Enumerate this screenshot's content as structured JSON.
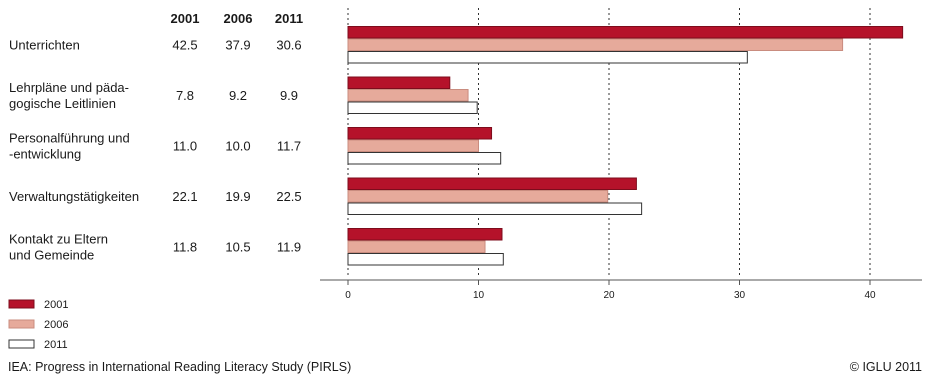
{
  "chart_data": {
    "type": "bar",
    "orientation": "horizontal",
    "column_headers": [
      "2001",
      "2006",
      "2011"
    ],
    "categories": [
      [
        "Unterrichten"
      ],
      [
        "Lehrpläne und päda-",
        "gogische Leitlinien"
      ],
      [
        "Personalführung und",
        "-entwicklung"
      ],
      [
        "Verwaltungstätigkeiten"
      ],
      [
        "Kontakt zu Eltern",
        "und Gemeinde"
      ]
    ],
    "series": [
      {
        "name": "2001",
        "color": "#b5122a",
        "values": [
          42.5,
          7.8,
          11.0,
          22.1,
          11.8
        ]
      },
      {
        "name": "2006",
        "color": "#e6aa9b",
        "values": [
          37.9,
          9.2,
          10.0,
          19.9,
          10.5
        ]
      },
      {
        "name": "2011",
        "color": "#ffffff",
        "values": [
          30.6,
          9.9,
          11.7,
          22.5,
          11.9
        ]
      }
    ],
    "value_labels": [
      [
        "42.5",
        "37.9",
        "30.6"
      ],
      [
        "7.8",
        "9.2",
        "9.9"
      ],
      [
        "11.0",
        "10.0",
        "11.7"
      ],
      [
        "22.1",
        "19.9",
        "22.5"
      ],
      [
        "11.8",
        "10.5",
        "11.9"
      ]
    ],
    "xlim": [
      0,
      44
    ],
    "xticks": [
      0,
      10,
      20,
      30,
      40
    ],
    "grid": true,
    "legend_position": "bottom-left"
  },
  "footer": {
    "source": "IEA: Progress in International Reading Literacy Study (PIRLS)",
    "copyright": "© IGLU 2011"
  }
}
